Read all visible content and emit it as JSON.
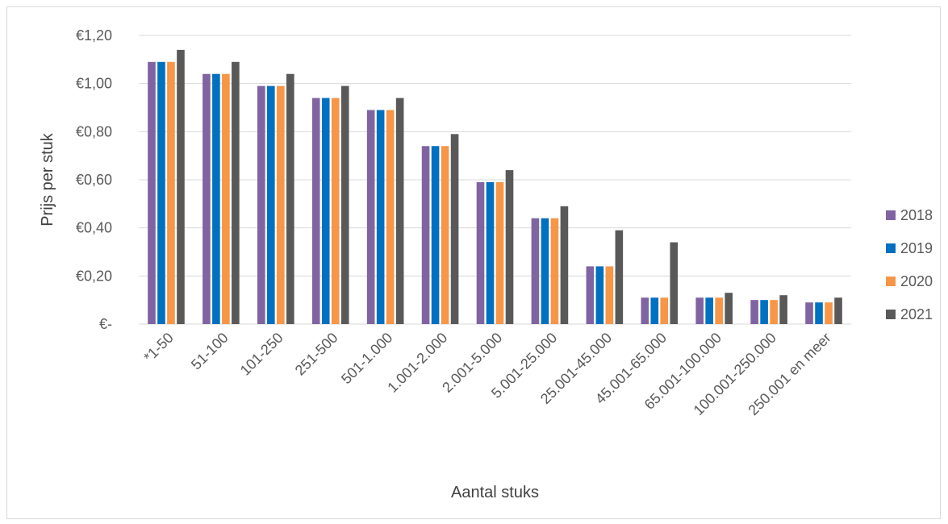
{
  "chart_data": {
    "type": "bar",
    "categories": [
      "*1-50",
      "51-100",
      "101-250",
      "251-500",
      "501-1.000",
      "1.001-2.000",
      "2.001-5.000",
      "5.001-25.000",
      "25.001-45.000",
      "45.001-65.000",
      "65.001-100.000",
      "100.001-250.000",
      "250.001 en meer"
    ],
    "series": [
      {
        "name": "2018",
        "color": "#8064a2",
        "values": [
          1.09,
          1.04,
          0.99,
          0.94,
          0.89,
          0.74,
          0.59,
          0.44,
          0.24,
          0.11,
          0.11,
          0.1,
          0.09
        ]
      },
      {
        "name": "2019",
        "color": "#0070c0",
        "values": [
          1.09,
          1.04,
          0.99,
          0.94,
          0.89,
          0.74,
          0.59,
          0.44,
          0.24,
          0.11,
          0.11,
          0.1,
          0.09
        ]
      },
      {
        "name": "2020",
        "color": "#f79646",
        "values": [
          1.09,
          1.04,
          0.99,
          0.94,
          0.89,
          0.74,
          0.59,
          0.44,
          0.24,
          0.11,
          0.11,
          0.1,
          0.09
        ]
      },
      {
        "name": "2021",
        "color": "#595959",
        "values": [
          1.14,
          1.09,
          1.04,
          0.99,
          0.94,
          0.79,
          0.64,
          0.49,
          0.39,
          0.34,
          0.13,
          0.12,
          0.11
        ]
      }
    ],
    "yticks": [
      {
        "value": 0,
        "label": "€-"
      },
      {
        "value": 0.2,
        "label": "€0,20"
      },
      {
        "value": 0.4,
        "label": "€0,40"
      },
      {
        "value": 0.6,
        "label": "€0,60"
      },
      {
        "value": 0.8,
        "label": "€0,80"
      },
      {
        "value": 1.0,
        "label": "€1,00"
      },
      {
        "value": 1.2,
        "label": "€1,20"
      }
    ],
    "ylim": [
      0,
      1.2
    ],
    "xlabel": "Aantal stuks",
    "ylabel": "Prijs per stuk",
    "grid": true,
    "legend_position": "right",
    "gridline_color": "#d9d9d9"
  }
}
